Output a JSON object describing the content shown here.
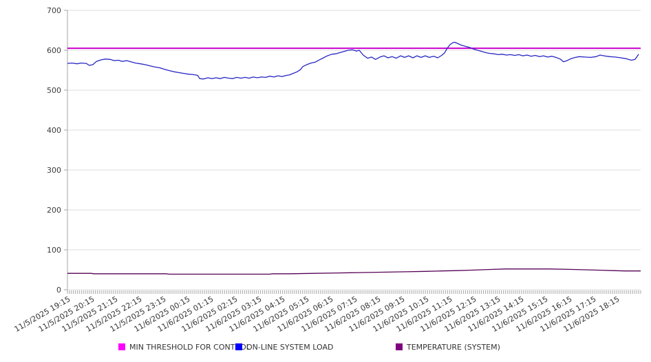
{
  "chart": {
    "y_axis": {
      "ticks": [
        700,
        600,
        500,
        400,
        300,
        200,
        100,
        0
      ]
    },
    "x_axis": {
      "labels": [
        "11/5/2025 19:15",
        "11/5/2025 20:15",
        "11/5/2025 21:15",
        "11/5/2025 22:15",
        "11/5/2025 23:15",
        "11/6/2025 00:15",
        "11/6/2025 01:15",
        "11/6/2025 02:15",
        "11/6/2025 03:15",
        "11/6/2025 04:15",
        "11/6/2025 05:15",
        "11/6/2025 06:15",
        "11/6/2025 07:15",
        "11/6/2025 08:15",
        "11/6/2025 09:15",
        "11/6/2025 10:15",
        "11/6/2025 11:15",
        "11/6/2025 12:15",
        "11/6/2025 13:15",
        "11/6/2025 14:15",
        "11/6/2025 15:15",
        "11/6/2025 16:15",
        "11/6/2025 17:15",
        "11/6/2025 18:15"
      ],
      "label_interval_minutes": 60,
      "minor_tick_minutes": 5,
      "total_minutes": 1440
    },
    "colors": {
      "gridline": "#dcdcdc",
      "axis": "#a6a6a6",
      "tick_text": "#3a3a3a"
    }
  },
  "chart_data": {
    "type": "line",
    "title": "",
    "xlabel": "",
    "ylabel": "",
    "ylim": [
      0,
      700
    ],
    "grid": "horizontal",
    "legend_position": "bottom",
    "x_unit": "minutes since 11/5/2025 19:15",
    "series": [
      {
        "name": "MIN THRESHOLD FOR CONTROL",
        "line_color": "#cc00cc",
        "swatch_color": "#ff00ff",
        "kind": "constant",
        "value": 605,
        "line_width": 2
      },
      {
        "name": "ON-LINE SYSTEM LOAD",
        "line_color": "#2525c4",
        "swatch_color": "#0000ff",
        "kind": "points",
        "line_width": 1.3,
        "points": [
          [
            0,
            567
          ],
          [
            12,
            568
          ],
          [
            24,
            566
          ],
          [
            35,
            568
          ],
          [
            47,
            567
          ],
          [
            55,
            562
          ],
          [
            64,
            564
          ],
          [
            73,
            572
          ],
          [
            85,
            576
          ],
          [
            95,
            578
          ],
          [
            107,
            577
          ],
          [
            118,
            574
          ],
          [
            128,
            575
          ],
          [
            138,
            572
          ],
          [
            149,
            574
          ],
          [
            159,
            571
          ],
          [
            171,
            568
          ],
          [
            183,
            566
          ],
          [
            195,
            564
          ],
          [
            207,
            561
          ],
          [
            220,
            558
          ],
          [
            232,
            556
          ],
          [
            244,
            552
          ],
          [
            256,
            549
          ],
          [
            268,
            546
          ],
          [
            280,
            544
          ],
          [
            292,
            542
          ],
          [
            304,
            540
          ],
          [
            316,
            539
          ],
          [
            327,
            537
          ],
          [
            332,
            529
          ],
          [
            342,
            528
          ],
          [
            353,
            531
          ],
          [
            363,
            529
          ],
          [
            373,
            531
          ],
          [
            384,
            529
          ],
          [
            394,
            532
          ],
          [
            405,
            530
          ],
          [
            415,
            529
          ],
          [
            425,
            532
          ],
          [
            436,
            530
          ],
          [
            446,
            532
          ],
          [
            456,
            530
          ],
          [
            467,
            533
          ],
          [
            477,
            531
          ],
          [
            487,
            533
          ],
          [
            498,
            532
          ],
          [
            508,
            535
          ],
          [
            519,
            533
          ],
          [
            529,
            536
          ],
          [
            539,
            534
          ],
          [
            550,
            537
          ],
          [
            557,
            538
          ],
          [
            567,
            542
          ],
          [
            577,
            546
          ],
          [
            586,
            552
          ],
          [
            591,
            559
          ],
          [
            601,
            564
          ],
          [
            612,
            568
          ],
          [
            622,
            570
          ],
          [
            633,
            576
          ],
          [
            643,
            581
          ],
          [
            653,
            586
          ],
          [
            664,
            590
          ],
          [
            674,
            591
          ],
          [
            684,
            594
          ],
          [
            695,
            597
          ],
          [
            705,
            600
          ],
          [
            716,
            601
          ],
          [
            726,
            598
          ],
          [
            733,
            600
          ],
          [
            743,
            588
          ],
          [
            754,
            580
          ],
          [
            764,
            583
          ],
          [
            774,
            577
          ],
          [
            785,
            583
          ],
          [
            795,
            586
          ],
          [
            805,
            581
          ],
          [
            816,
            584
          ],
          [
            826,
            580
          ],
          [
            837,
            586
          ],
          [
            847,
            582
          ],
          [
            857,
            586
          ],
          [
            868,
            581
          ],
          [
            878,
            586
          ],
          [
            888,
            582
          ],
          [
            899,
            586
          ],
          [
            909,
            582
          ],
          [
            920,
            585
          ],
          [
            930,
            581
          ],
          [
            940,
            587
          ],
          [
            947,
            593
          ],
          [
            954,
            605
          ],
          [
            961,
            614
          ],
          [
            968,
            619
          ],
          [
            973,
            620
          ],
          [
            980,
            617
          ],
          [
            989,
            613
          ],
          [
            999,
            610
          ],
          [
            1010,
            607
          ],
          [
            1020,
            603
          ],
          [
            1030,
            600
          ],
          [
            1041,
            597
          ],
          [
            1051,
            594
          ],
          [
            1061,
            592
          ],
          [
            1072,
            591
          ],
          [
            1082,
            589
          ],
          [
            1092,
            590
          ],
          [
            1103,
            588
          ],
          [
            1113,
            589
          ],
          [
            1124,
            587
          ],
          [
            1134,
            589
          ],
          [
            1144,
            586
          ],
          [
            1155,
            588
          ],
          [
            1165,
            585
          ],
          [
            1175,
            587
          ],
          [
            1186,
            584
          ],
          [
            1196,
            586
          ],
          [
            1206,
            583
          ],
          [
            1217,
            585
          ],
          [
            1227,
            582
          ],
          [
            1238,
            578
          ],
          [
            1246,
            571
          ],
          [
            1255,
            574
          ],
          [
            1265,
            579
          ],
          [
            1276,
            582
          ],
          [
            1286,
            584
          ],
          [
            1300,
            583
          ],
          [
            1314,
            582
          ],
          [
            1328,
            584
          ],
          [
            1338,
            588
          ],
          [
            1348,
            586
          ],
          [
            1362,
            584
          ],
          [
            1376,
            583
          ],
          [
            1390,
            581
          ],
          [
            1403,
            579
          ],
          [
            1417,
            575
          ],
          [
            1426,
            577
          ],
          [
            1435,
            590
          ]
        ]
      },
      {
        "name": "TEMPERATURE (SYSTEM)",
        "line_color": "#550055",
        "swatch_color": "#800080",
        "kind": "points",
        "line_width": 1.3,
        "points": [
          [
            0,
            41
          ],
          [
            60,
            41
          ],
          [
            66,
            40
          ],
          [
            248,
            40
          ],
          [
            256,
            39
          ],
          [
            508,
            39
          ],
          [
            516,
            40
          ],
          [
            560,
            40
          ],
          [
            620,
            41
          ],
          [
            680,
            42
          ],
          [
            730,
            43
          ],
          [
            790,
            44
          ],
          [
            850,
            45
          ],
          [
            900,
            46
          ],
          [
            940,
            47
          ],
          [
            980,
            48
          ],
          [
            1010,
            49
          ],
          [
            1040,
            50
          ],
          [
            1070,
            51
          ],
          [
            1100,
            52
          ],
          [
            1150,
            52
          ],
          [
            1210,
            52
          ],
          [
            1260,
            51
          ],
          [
            1300,
            50
          ],
          [
            1340,
            49
          ],
          [
            1370,
            48
          ],
          [
            1400,
            47
          ],
          [
            1440,
            47
          ]
        ]
      }
    ]
  }
}
